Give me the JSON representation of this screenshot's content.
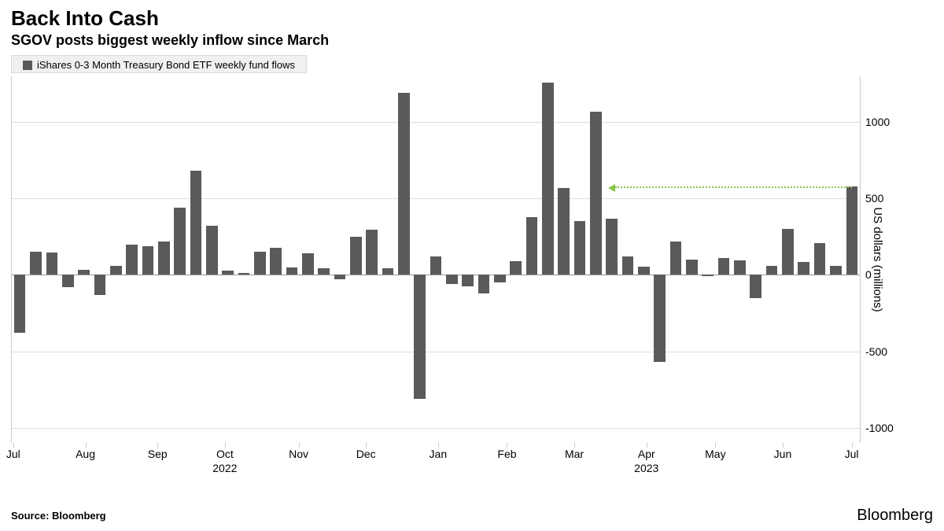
{
  "header": {
    "title": "Back Into Cash",
    "subtitle": "SGOV posts biggest weekly inflow since March"
  },
  "legend": {
    "swatch_color": "#5a5a5a",
    "label": "iShares 0-3 Month Treasury Bond ETF weekly fund flows"
  },
  "chart": {
    "type": "bar",
    "bar_color": "#5a5a5a",
    "background_color": "#ffffff",
    "grid_color": "#dddddd",
    "zero_color": "#999999",
    "ylim": [
      -1100,
      1300
    ],
    "yticks": [
      -1000,
      -500,
      0,
      500,
      1000
    ],
    "y_axis_title": "US dollars (millions)",
    "y_tick_fontsize": 14,
    "y_title_fontsize": 15,
    "x_tick_fontsize": 14,
    "values": [
      -380,
      150,
      145,
      -80,
      35,
      -130,
      60,
      200,
      190,
      220,
      440,
      680,
      320,
      30,
      12,
      150,
      175,
      50,
      140,
      45,
      -30,
      250,
      295,
      45,
      1190,
      -810,
      120,
      -60,
      -75,
      -120,
      -50,
      90,
      380,
      1260,
      570,
      350,
      1070,
      370,
      120,
      55,
      -570,
      220,
      100,
      -10,
      110,
      95,
      -150,
      60,
      300,
      85,
      210,
      60,
      580
    ],
    "bar_gap_pct": 0.28,
    "x_month_ticks": [
      {
        "pos": 0.0,
        "label": "Jul"
      },
      {
        "pos": 4.5,
        "label": "Aug"
      },
      {
        "pos": 9.0,
        "label": "Sep"
      },
      {
        "pos": 13.2,
        "label": "Oct"
      },
      {
        "pos": 17.8,
        "label": "Nov"
      },
      {
        "pos": 22.0,
        "label": "Dec"
      },
      {
        "pos": 26.5,
        "label": "Jan"
      },
      {
        "pos": 30.8,
        "label": "Feb"
      },
      {
        "pos": 35.0,
        "label": "Mar"
      },
      {
        "pos": 39.5,
        "label": "Apr"
      },
      {
        "pos": 43.8,
        "label": "May"
      },
      {
        "pos": 48.0,
        "label": "Jun"
      },
      {
        "pos": 52.3,
        "label": "Jul"
      }
    ],
    "x_year_ticks": [
      {
        "pos": 13.2,
        "label": "2022"
      },
      {
        "pos": 39.5,
        "label": "2023"
      }
    ],
    "annotation": {
      "color": "#8bc34a",
      "y_value": 580,
      "x_from_bar": 52,
      "x_to_bar": 37.2,
      "dotted": true
    }
  },
  "footer": {
    "source": "Source: Bloomberg",
    "logo": "Bloomberg"
  }
}
